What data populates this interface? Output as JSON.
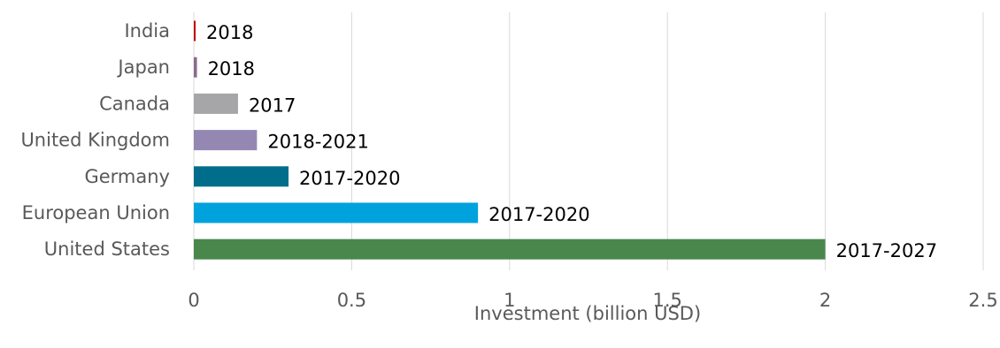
{
  "chart_data": {
    "type": "bar",
    "orientation": "horizontal",
    "title": "",
    "xlabel": "Investment (billion USD)",
    "ylabel": "",
    "xlim": [
      0,
      2.5
    ],
    "x_ticks": [
      "0",
      "0.5",
      "1",
      "1.5",
      "2",
      "2.5"
    ],
    "grid": "vertical",
    "legend": "none",
    "categories": [
      "India",
      "Japan",
      "Canada",
      "United Kingdom",
      "Germany",
      "European Union",
      "United States"
    ],
    "values": [
      0.005,
      0.01,
      0.14,
      0.2,
      0.3,
      0.9,
      2.0
    ],
    "data_labels": [
      "2018",
      "2018",
      "2017",
      "2018-2021",
      "2017-2020",
      "2017-2020",
      "2017-2027"
    ],
    "colors": [
      "#c00000",
      "#8c6a8f",
      "#a6a6a8",
      "#9488b3",
      "#006d8b",
      "#00a2de",
      "#4a874c"
    ]
  }
}
